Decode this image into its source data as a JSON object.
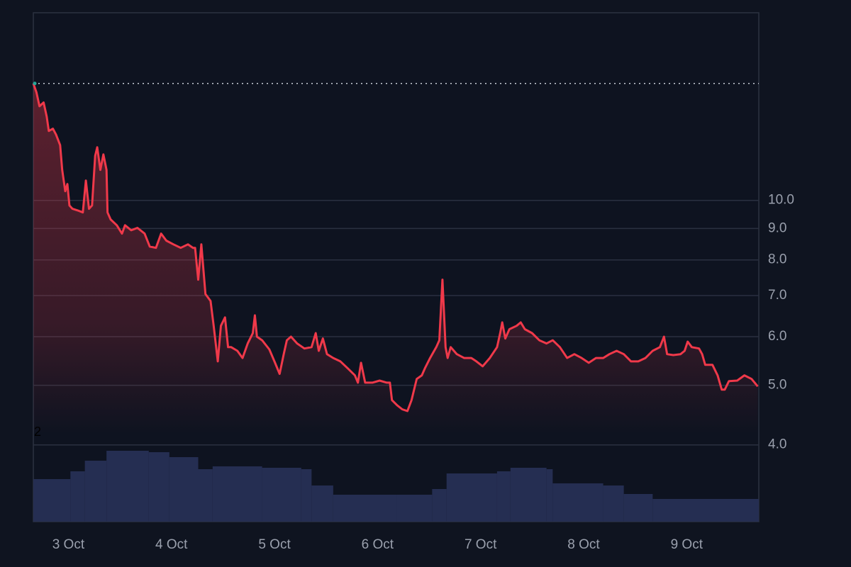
{
  "chart_data": {
    "type": "line",
    "x": [
      2.66,
      2.69,
      2.72,
      2.76,
      2.79,
      2.81,
      2.85,
      2.88,
      2.92,
      2.94,
      2.97,
      2.99,
      3.01,
      3.04,
      3.09,
      3.14,
      3.17,
      3.2,
      3.23,
      3.26,
      3.28,
      3.31,
      3.34,
      3.37,
      3.38,
      3.41,
      3.47,
      3.52,
      3.55,
      3.61,
      3.67,
      3.74,
      3.79,
      3.85,
      3.9,
      3.95,
      4.02,
      4.09,
      4.16,
      4.21,
      4.23,
      4.26,
      4.29,
      4.33,
      4.38,
      4.41,
      4.45,
      4.48,
      4.52,
      4.55,
      4.58,
      4.64,
      4.69,
      4.74,
      4.79,
      4.81,
      4.83,
      4.88,
      4.95,
      5.0,
      5.05,
      5.09,
      5.12,
      5.16,
      5.22,
      5.29,
      5.36,
      5.4,
      5.43,
      5.47,
      5.51,
      5.57,
      5.64,
      5.71,
      5.78,
      5.81,
      5.84,
      5.88,
      5.95,
      6.02,
      6.09,
      6.12,
      6.14,
      6.19,
      6.24,
      6.29,
      6.33,
      6.38,
      6.43,
      6.46,
      6.51,
      6.57,
      6.6,
      6.63,
      6.66,
      6.68,
      6.71,
      6.77,
      6.84,
      6.91,
      6.96,
      7.02,
      7.09,
      7.16,
      7.19,
      7.21,
      7.24,
      7.28,
      7.35,
      7.39,
      7.43,
      7.5,
      7.57,
      7.64,
      7.7,
      7.77,
      7.84,
      7.91,
      7.98,
      8.05,
      8.12,
      8.19,
      8.25,
      8.32,
      8.39,
      8.46,
      8.53,
      8.6,
      8.67,
      8.74,
      8.78,
      8.81,
      8.87,
      8.94,
      8.98,
      9.01,
      9.05,
      9.12,
      9.15,
      9.18,
      9.25,
      9.3,
      9.34,
      9.37,
      9.41,
      9.49,
      9.56,
      9.63,
      9.69
    ],
    "series": [
      {
        "color": "#f0394a",
        "values": [
          15.5,
          14.99,
          14.23,
          14.43,
          13.68,
          12.97,
          13.08,
          12.8,
          12.3,
          11.21,
          10.35,
          10.63,
          9.81,
          9.69,
          9.63,
          9.56,
          10.77,
          9.69,
          9.81,
          11.82,
          12.2,
          11.21,
          11.88,
          11.21,
          9.56,
          9.31,
          9.11,
          8.83,
          9.11,
          8.94,
          9.02,
          8.83,
          8.41,
          8.37,
          8.83,
          8.6,
          8.48,
          8.37,
          8.48,
          8.37,
          8.37,
          7.43,
          8.48,
          7.04,
          6.86,
          6.25,
          5.47,
          6.25,
          6.45,
          5.77,
          5.77,
          5.69,
          5.54,
          5.85,
          6.08,
          6.5,
          6.0,
          5.92,
          5.72,
          5.47,
          5.22,
          5.62,
          5.92,
          6.0,
          5.85,
          5.74,
          5.77,
          6.08,
          5.69,
          5.96,
          5.62,
          5.54,
          5.47,
          5.33,
          5.19,
          5.05,
          5.44,
          5.05,
          5.05,
          5.09,
          5.05,
          5.05,
          4.73,
          4.64,
          4.57,
          4.54,
          4.73,
          5.12,
          5.19,
          5.33,
          5.54,
          5.77,
          5.92,
          7.43,
          5.77,
          5.54,
          5.77,
          5.62,
          5.54,
          5.54,
          5.47,
          5.37,
          5.54,
          5.77,
          6.08,
          6.33,
          5.96,
          6.17,
          6.25,
          6.33,
          6.17,
          6.08,
          5.92,
          5.85,
          5.92,
          5.77,
          5.54,
          5.62,
          5.54,
          5.44,
          5.54,
          5.54,
          5.62,
          5.69,
          5.62,
          5.47,
          5.47,
          5.54,
          5.69,
          5.77,
          6.0,
          5.62,
          5.6,
          5.62,
          5.69,
          5.89,
          5.77,
          5.74,
          5.62,
          5.4,
          5.4,
          5.19,
          4.92,
          4.92,
          5.08,
          5.09,
          5.19,
          5.12,
          4.98
        ]
      }
    ],
    "volume": {
      "color": "#252e52",
      "x": [
        2.66,
        3.02,
        3.16,
        3.37,
        3.78,
        3.98,
        4.26,
        4.4,
        4.88,
        5.26,
        5.36,
        5.57,
        6.19,
        6.53,
        6.67,
        7.16,
        7.29,
        7.64,
        7.7,
        8.19,
        8.39,
        8.67
      ],
      "values": [
        60,
        71,
        86,
        100,
        98,
        91,
        74,
        78,
        76,
        74,
        51,
        38,
        38,
        46,
        68,
        71,
        76,
        74,
        54,
        51,
        39,
        32
      ]
    },
    "volume_label": "2",
    "xlim": [
      2.66,
      9.7
    ],
    "ylim": [
      3.0,
      20.2
    ],
    "log_y": true,
    "grid": true,
    "xticks": [
      {
        "value": 3,
        "label": "3 Oct"
      },
      {
        "value": 4,
        "label": "4 Oct"
      },
      {
        "value": 5,
        "label": "5 Oct"
      },
      {
        "value": 6,
        "label": "6 Oct"
      },
      {
        "value": 7,
        "label": "7 Oct"
      },
      {
        "value": 8,
        "label": "8 Oct"
      },
      {
        "value": 9,
        "label": "9 Oct"
      }
    ],
    "yticks": [
      {
        "value": 4,
        "label": "4.0"
      },
      {
        "value": 5,
        "label": "5.0"
      },
      {
        "value": 6,
        "label": "6.0"
      },
      {
        "value": 7,
        "label": "7.0"
      },
      {
        "value": 8,
        "label": "8.0"
      },
      {
        "value": 9,
        "label": "9.0"
      },
      {
        "value": 10,
        "label": "10.0"
      }
    ]
  }
}
